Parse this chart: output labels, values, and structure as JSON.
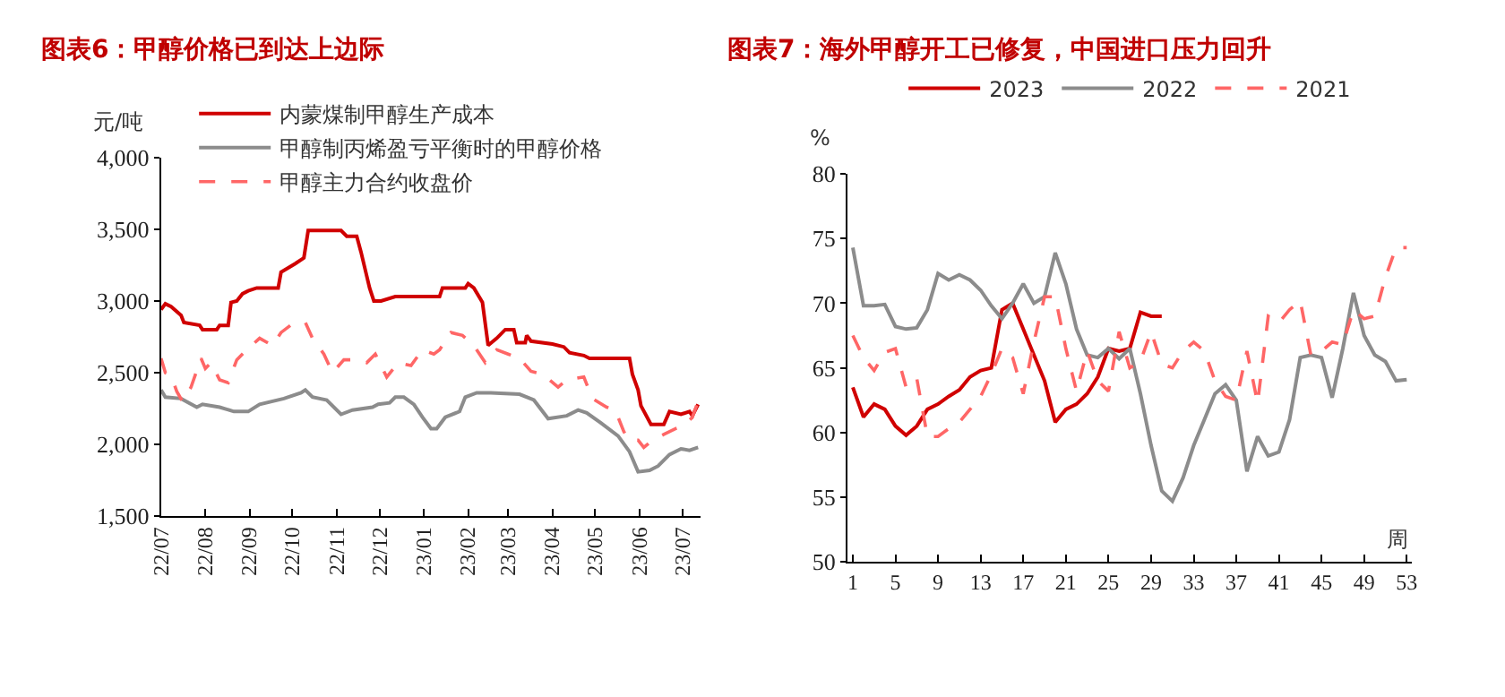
{
  "chart_data": [
    {
      "type": "line",
      "title": "图表6：甲醇价格已到达上边际",
      "ylabel": "元/吨",
      "legend": "top left",
      "xlim": [
        "2022-07-01",
        "2023-07-14"
      ],
      "ylim": [
        1500,
        4000
      ],
      "xticks": [
        {
          "value": "2022-07-01",
          "label": "22/07"
        },
        {
          "value": "2022-08-01",
          "label": "22/08"
        },
        {
          "value": "2022-09-01",
          "label": "22/09"
        },
        {
          "value": "2022-10-01",
          "label": "22/10"
        },
        {
          "value": "2022-11-01",
          "label": "22/11"
        },
        {
          "value": "2022-12-01",
          "label": "22/12"
        },
        {
          "value": "2023-01-01",
          "label": "23/01"
        },
        {
          "value": "2023-02-01",
          "label": "23/02"
        },
        {
          "value": "2023-03-01",
          "label": "23/03"
        },
        {
          "value": "2023-04-01",
          "label": "23/04"
        },
        {
          "value": "2023-05-01",
          "label": "23/05"
        },
        {
          "value": "2023-06-01",
          "label": "23/06"
        },
        {
          "value": "2023-07-01",
          "label": "23/07"
        }
      ],
      "yticks": [
        {
          "value": 1500,
          "label": "1,500"
        },
        {
          "value": 2000,
          "label": "2,000"
        },
        {
          "value": 2500,
          "label": "2,500"
        },
        {
          "value": 3000,
          "label": "3,000"
        },
        {
          "value": 3500,
          "label": "3,500"
        },
        {
          "value": 4000,
          "label": "4,000"
        }
      ],
      "series": [
        {
          "name": "内蒙煤制甲醇生产成本",
          "color": "#d00000",
          "line_style": "solid",
          "x": [
            "2022-07-01",
            "2022-07-04",
            "2022-07-08",
            "2022-07-15",
            "2022-07-17",
            "2022-07-28",
            "2022-07-30",
            "2022-08-09",
            "2022-08-11",
            "2022-08-17",
            "2022-08-19",
            "2022-08-23",
            "2022-08-27",
            "2022-08-31",
            "2022-09-06",
            "2022-09-21",
            "2022-09-23",
            "2022-10-03",
            "2022-10-09",
            "2022-10-12",
            "2022-11-04",
            "2022-11-08",
            "2022-11-15",
            "2022-11-18",
            "2022-11-24",
            "2022-11-27",
            "2022-12-02",
            "2022-12-12",
            "2023-01-12",
            "2023-01-14",
            "2023-01-30",
            "2023-02-01",
            "2023-02-05",
            "2023-02-11",
            "2023-02-15",
            "2023-02-21",
            "2023-02-27",
            "2023-03-05",
            "2023-03-07",
            "2023-03-13",
            "2023-03-14",
            "2023-03-17",
            "2023-04-01",
            "2023-04-09",
            "2023-04-13",
            "2023-04-23",
            "2023-04-27",
            "2023-05-25",
            "2023-05-27",
            "2023-05-31",
            "2023-06-02",
            "2023-06-09",
            "2023-06-18",
            "2023-06-22",
            "2023-06-30",
            "2023-07-06",
            "2023-07-08",
            "2023-07-12"
          ],
          "values": [
            2940,
            2980,
            2960,
            2900,
            2850,
            2830,
            2800,
            2800,
            2830,
            2830,
            2990,
            3000,
            3050,
            3070,
            3090,
            3090,
            3200,
            3260,
            3300,
            3490,
            3490,
            3450,
            3450,
            3340,
            3090,
            3000,
            3000,
            3030,
            3030,
            3090,
            3090,
            3120,
            3090,
            2990,
            2690,
            2740,
            2800,
            2800,
            2710,
            2710,
            2760,
            2720,
            2700,
            2680,
            2640,
            2620,
            2600,
            2600,
            2490,
            2380,
            2270,
            2140,
            2140,
            2230,
            2210,
            2230,
            2200,
            2280
          ]
        },
        {
          "name": "甲醇制丙烯盈亏平衡时的甲醇价格",
          "color": "#8c8c8c",
          "line_style": "solid",
          "x": [
            "2022-07-01",
            "2022-07-04",
            "2022-07-15",
            "2022-07-26",
            "2022-07-30",
            "2022-08-11",
            "2022-08-21",
            "2022-08-31",
            "2022-09-08",
            "2022-09-25",
            "2022-10-07",
            "2022-10-10",
            "2022-10-15",
            "2022-10-25",
            "2022-11-04",
            "2022-11-12",
            "2022-11-26",
            "2022-11-30",
            "2022-12-08",
            "2022-12-12",
            "2022-12-18",
            "2022-12-25",
            "2022-12-31",
            "2023-01-06",
            "2023-01-10",
            "2023-01-16",
            "2023-01-26",
            "2023-01-30",
            "2023-02-07",
            "2023-02-17",
            "2023-03-09",
            "2023-03-19",
            "2023-03-29",
            "2023-04-11",
            "2023-04-19",
            "2023-04-25",
            "2023-05-05",
            "2023-05-17",
            "2023-05-25",
            "2023-05-31",
            "2023-06-08",
            "2023-06-14",
            "2023-06-22",
            "2023-06-30",
            "2023-07-06",
            "2023-07-12"
          ],
          "values": [
            2380,
            2330,
            2320,
            2260,
            2280,
            2260,
            2230,
            2230,
            2280,
            2320,
            2360,
            2380,
            2330,
            2310,
            2210,
            2240,
            2260,
            2280,
            2290,
            2330,
            2330,
            2280,
            2190,
            2110,
            2110,
            2190,
            2230,
            2330,
            2360,
            2360,
            2350,
            2310,
            2180,
            2200,
            2240,
            2220,
            2150,
            2060,
            1950,
            1810,
            1820,
            1850,
            1930,
            1970,
            1960,
            1980
          ]
        },
        {
          "name": "甲醇主力合约收盘价",
          "color": "#ff6666",
          "line_style": "dashed",
          "x": [
            "2022-07-01",
            "2022-07-04",
            "2022-07-08",
            "2022-07-12",
            "2022-07-16",
            "2022-07-22",
            "2022-07-29",
            "2022-08-01",
            "2022-08-05",
            "2022-08-11",
            "2022-08-17",
            "2022-08-23",
            "2022-08-29",
            "2022-09-08",
            "2022-09-17",
            "2022-09-23",
            "2022-10-01",
            "2022-10-10",
            "2022-10-15",
            "2022-10-23",
            "2022-10-29",
            "2022-11-06",
            "2022-11-16",
            "2022-11-22",
            "2022-11-28",
            "2022-12-06",
            "2022-12-14",
            "2022-12-23",
            "2022-12-31",
            "2023-01-08",
            "2023-01-12",
            "2023-01-20",
            "2023-01-28",
            "2023-02-05",
            "2023-02-13",
            "2023-02-21",
            "2023-03-01",
            "2023-03-09",
            "2023-03-17",
            "2023-03-25",
            "2023-04-05",
            "2023-04-11",
            "2023-04-23",
            "2023-04-29",
            "2023-05-09",
            "2023-05-15",
            "2023-05-21",
            "2023-05-25",
            "2023-05-31",
            "2023-06-04",
            "2023-06-10",
            "2023-06-18",
            "2023-06-26",
            "2023-07-02",
            "2023-07-08",
            "2023-07-12"
          ],
          "values": [
            2600,
            2500,
            2480,
            2370,
            2300,
            2400,
            2600,
            2530,
            2570,
            2450,
            2430,
            2590,
            2650,
            2740,
            2690,
            2780,
            2840,
            2850,
            2740,
            2630,
            2500,
            2590,
            2590,
            2570,
            2630,
            2470,
            2570,
            2550,
            2660,
            2630,
            2660,
            2780,
            2760,
            2690,
            2570,
            2660,
            2630,
            2600,
            2510,
            2490,
            2400,
            2450,
            2470,
            2320,
            2260,
            2240,
            2090,
            2030,
            2030,
            1980,
            2030,
            2070,
            2110,
            2130,
            2190,
            2300
          ]
        }
      ]
    },
    {
      "type": "line",
      "title": "图表7：海外甲醇开工已修复，中国进口压力回升",
      "ylabel": "%",
      "xlabel": "周",
      "legend": "top",
      "x": [
        1,
        2,
        3,
        4,
        5,
        6,
        7,
        8,
        9,
        10,
        11,
        12,
        13,
        14,
        15,
        16,
        17,
        18,
        19,
        20,
        21,
        22,
        23,
        24,
        25,
        26,
        27,
        28,
        29,
        30,
        31,
        32,
        33,
        34,
        35,
        36,
        37,
        38,
        39,
        40,
        41,
        42,
        43,
        44,
        45,
        46,
        47,
        48,
        49,
        50,
        51,
        52,
        53
      ],
      "xlim": [
        0.5,
        53.5
      ],
      "ylim": [
        50,
        80
      ],
      "xticks": [
        1,
        5,
        9,
        13,
        17,
        21,
        25,
        29,
        33,
        37,
        41,
        45,
        49,
        53
      ],
      "yticks": [
        50,
        55,
        60,
        65,
        70,
        75,
        80
      ],
      "series": [
        {
          "name": "2023",
          "color": "#d00000",
          "line_style": "solid",
          "values": [
            63.5,
            61.2,
            62.2,
            61.8,
            60.5,
            59.8,
            60.5,
            61.8,
            62.2,
            62.8,
            63.3,
            64.3,
            64.8,
            65.0,
            69.5,
            70.0,
            68.0,
            66.0,
            64.0,
            60.8,
            61.8,
            62.2,
            63.0,
            64.3,
            66.5,
            66.3,
            66.5,
            69.3,
            69.0,
            69.0,
            null,
            null,
            null,
            null,
            null,
            null,
            null,
            null,
            null,
            null,
            null,
            null,
            null,
            null,
            null,
            null,
            null,
            null,
            null,
            null,
            null,
            null,
            null
          ]
        },
        {
          "name": "2022",
          "color": "#8c8c8c",
          "line_style": "solid",
          "values": [
            74.3,
            69.8,
            69.8,
            69.9,
            68.2,
            68.0,
            68.1,
            69.5,
            72.3,
            71.8,
            72.2,
            71.8,
            71.0,
            69.8,
            68.8,
            70.0,
            71.5,
            70.0,
            70.5,
            73.9,
            71.5,
            68.0,
            66.0,
            65.8,
            66.5,
            65.7,
            66.5,
            63.0,
            59.0,
            55.5,
            54.7,
            56.5,
            59.0,
            61.0,
            63.0,
            63.7,
            62.5,
            57.0,
            59.7,
            58.2,
            58.5,
            61.0,
            65.8,
            66.0,
            65.8,
            62.7,
            66.5,
            70.8,
            67.5,
            66.0,
            65.5,
            64.0,
            64.1
          ]
        },
        {
          "name": "2021",
          "color": "#ff6666",
          "line_style": "dashed",
          "values": [
            67.5,
            65.8,
            64.8,
            66.2,
            66.5,
            63.5,
            64.2,
            59.7,
            59.7,
            60.3,
            60.8,
            61.8,
            62.8,
            64.5,
            66.5,
            65.8,
            63.0,
            67.0,
            70.5,
            70.5,
            66.5,
            63.2,
            66.3,
            64.0,
            63.2,
            67.8,
            65.0,
            65.5,
            67.8,
            65.3,
            65.0,
            66.3,
            67.0,
            66.3,
            64.0,
            62.8,
            62.5,
            66.3,
            62.3,
            69.0,
            68.5,
            69.5,
            70.2,
            66.0,
            66.3,
            67.0,
            66.8,
            69.5,
            68.8,
            69.0,
            72.0,
            74.3,
            74.3
          ]
        }
      ]
    }
  ]
}
